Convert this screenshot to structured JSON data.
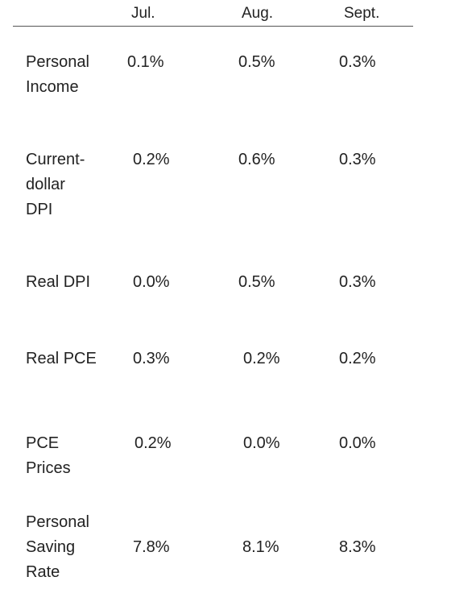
{
  "table": {
    "columns": [
      "Jul.",
      "Aug.",
      "Sept."
    ],
    "rows": [
      {
        "label_lines": [
          "Personal",
          "Income"
        ],
        "values": [
          "0.1%",
          "0.5%",
          "0.3%"
        ]
      },
      {
        "label_lines": [
          "Current-",
          "dollar",
          "DPI"
        ],
        "values": [
          "0.2%",
          "0.6%",
          "0.3%"
        ]
      },
      {
        "label_lines": [
          "Real DPI"
        ],
        "values": [
          "0.0%",
          "0.5%",
          "0.3%"
        ]
      },
      {
        "label_lines": [
          "Real PCE"
        ],
        "values": [
          "0.3%",
          "0.2%",
          "0.2%"
        ]
      },
      {
        "label_lines": [
          "PCE",
          "Prices"
        ],
        "values": [
          "0.2%",
          "0.0%",
          "0.0%"
        ]
      },
      {
        "label_lines": [
          "Personal",
          "Saving",
          "Rate"
        ],
        "values": [
          "7.8%",
          "8.1%",
          "8.3%"
        ]
      }
    ]
  },
  "colors": {
    "text": "#222222",
    "rule": "#555555",
    "background": "#ffffff"
  }
}
